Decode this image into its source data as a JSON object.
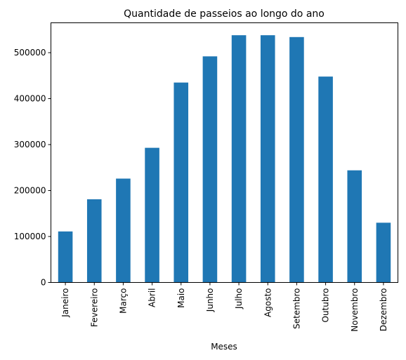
{
  "chart_data": {
    "type": "bar",
    "title": "Quantidade de passeios ao longo do ano",
    "xlabel": "Meses",
    "ylabel": "",
    "categories": [
      "Janeiro",
      "Fevereiro",
      "Março",
      "Abril",
      "Maio",
      "Junho",
      "Julho",
      "Agosto",
      "Setembro",
      "Outubro",
      "Novembro",
      "Dezembro"
    ],
    "values": [
      111000,
      181000,
      226000,
      293000,
      435000,
      492000,
      538000,
      538000,
      534000,
      448000,
      244000,
      130000
    ],
    "ylim": [
      0,
      565000
    ],
    "yticks": [
      0,
      100000,
      200000,
      300000,
      400000,
      500000
    ],
    "grid": false,
    "legend": "none",
    "bar_color": "#1f77b4"
  }
}
